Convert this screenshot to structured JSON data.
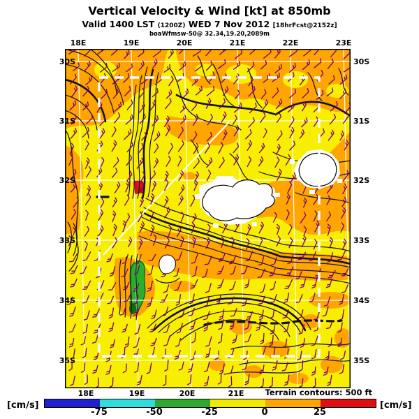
{
  "header": {
    "title": "Vertical Velocity & Wind [kt] at 850mb",
    "valid_prefix": "Valid 1400 LST ",
    "valid_init": "(1200Z)",
    "valid_date": " WED 7 Nov 2012 ",
    "fcst_tag": "[18hrFcst@2152z]",
    "model_line": "boaWfmsw-50@ 32.34,19.20,2089m"
  },
  "map": {
    "lon_ticks_top": [
      "18E",
      "19E",
      "20E",
      "21E",
      "22E",
      "23E"
    ],
    "lon_ticks_bottom": [
      "18E",
      "19E",
      "20E",
      "21E"
    ],
    "lat_ticks": [
      "30S",
      "31S",
      "32S",
      "33S",
      "34S",
      "35S"
    ],
    "terrain_legend": "Terrain contours: 500 ft"
  },
  "colorbar": {
    "unit_left": "[cm/s]",
    "unit_right": "[cm/s]",
    "tick_labels": [
      "-75",
      "-50",
      "-25",
      "0",
      "25"
    ],
    "segment_colors": [
      "#2020D0",
      "#30DCDC",
      "#30A830",
      "#F2EA00",
      "#FFA500",
      "#E01010"
    ]
  },
  "palette": {
    "background_yellow": "#F8EF00",
    "updraft_orange": "#FFA500",
    "strong_updraft_red": "#DD1010",
    "downdraft_green": "#28B028",
    "downdraft_green_dark": "#0C6E0C",
    "wind_barb_purple": "#780078",
    "terrain_contour_black": "#101010",
    "grid_white": "#FFFFFF"
  },
  "chart_data": {
    "type": "heatmap",
    "title": "Vertical Velocity & Wind [kt] at 850mb",
    "valid": "Valid 1400 LST (1200Z) WED 7 Nov 2012 [18hrFcst@2152z]",
    "units": "cm/s",
    "x_ticks": [
      "18E",
      "19E",
      "20E",
      "21E",
      "22E",
      "23E"
    ],
    "y_ticks": [
      "30S",
      "31S",
      "32S",
      "33S",
      "34S",
      "35S"
    ],
    "colorbar_ticks": [
      -75,
      -50,
      -25,
      0,
      25
    ],
    "bins": [
      {
        "range": "< -75",
        "color": "#2020D0"
      },
      {
        "range": "-75 to -50",
        "color": "#30DCDC"
      },
      {
        "range": "-50 to -25",
        "color": "#30A830"
      },
      {
        "range": "-25 to 0",
        "color": "#F8EF00"
      },
      {
        "range": "0 to 25",
        "color": "#FFA500"
      },
      {
        "range": "> 25",
        "color": "#E01010"
      }
    ],
    "field_summary": [
      "Most of the domain is -25 to 0 cm/s (yellow) with widespread 0 to 25 cm/s (orange) mottling, heaviest north of 32S, over the right-centre band and along mountain ranges",
      "Small > 25 cm/s updraft (red) on the ridge near 19E 32.1S",
      "Narrow -50 to -25 cm/s downdraft strip (green) near 19E between 33.5S and 34.3S",
      "White/blank no-data patches centred near 20.5E 32.3S, 22.3E 31.8S and 19.8E 33.5S",
      "Black terrain contours every 500 ft (thick lines = major levels); dense ranges run N-S near 19E and E-W along 33S-34S",
      "White lat/lon grid each 1 degree; thick dashed white rectangle marks inner model domain (about 18.4E-22.6E, 30.3S-34.9S)",
      "Wind barbs [kt] on ~0.25 degree grid: north-easterly flow over the northern half veering to near-southerly over the southern/coastal part"
    ],
    "legend": "Terrain contours: 500 ft",
    "grid": true
  }
}
